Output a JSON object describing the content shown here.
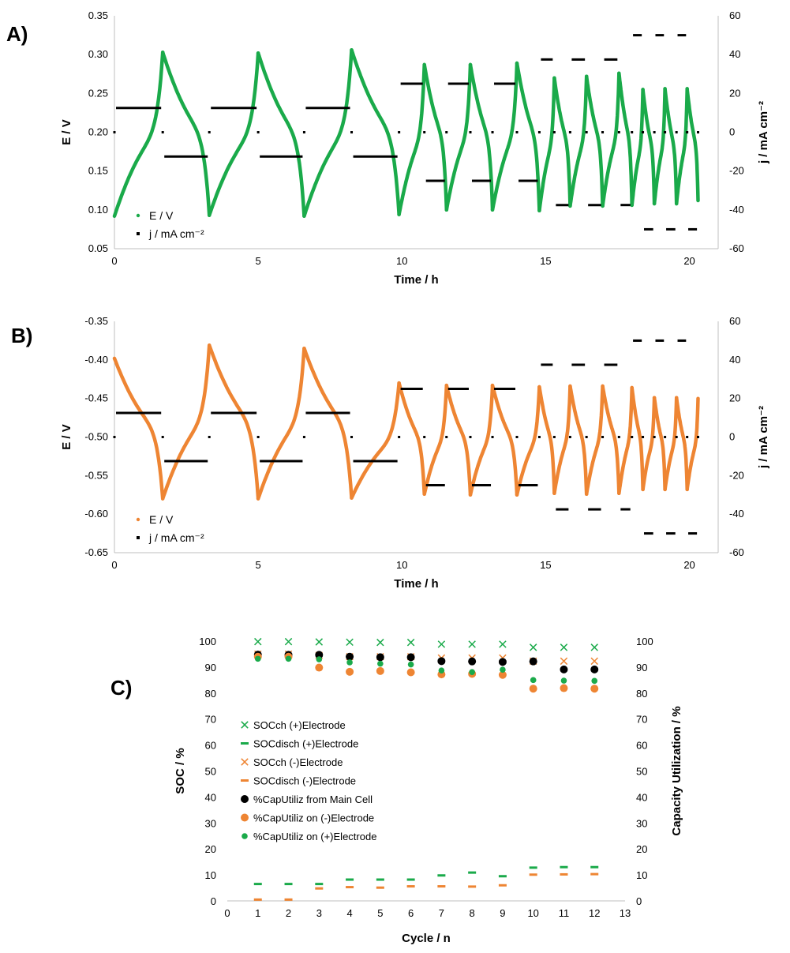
{
  "colors": {
    "green": "#1aaa4a",
    "orange": "#ee8533",
    "black": "#000000",
    "axis": "#bfbfbf"
  },
  "chart_data": [
    {
      "id": "A",
      "panel_label": "A)",
      "type": "line",
      "xlabel": "Time / h",
      "ylabel": "E / V",
      "y2label": "j / mA cm⁻²",
      "xlim": [
        0,
        21
      ],
      "ylim": [
        0.05,
        0.35
      ],
      "y2lim": [
        -60,
        60
      ],
      "xticks": [
        "0",
        "5",
        "10",
        "15",
        "20"
      ],
      "yticks": [
        "0.05",
        "0.10",
        "0.15",
        "0.20",
        "0.25",
        "0.30",
        "0.35"
      ],
      "y2ticks": [
        "-60",
        "-40",
        "-20",
        "0",
        "20",
        "40",
        "60"
      ],
      "legend": [
        "E / V",
        "j / mA cm⁻²"
      ],
      "legend_position": "bottom-left",
      "series": [
        {
          "name": "E / V",
          "color": "#1aaa4a",
          "segments": [
            {
              "t0": 0.0,
              "t1": 1.68,
              "v0": 0.092,
              "v1": 0.303
            },
            {
              "t0": 1.68,
              "t1": 3.3,
              "v0": 0.303,
              "v1": 0.093
            },
            {
              "t0": 3.3,
              "t1": 5.0,
              "v0": 0.093,
              "v1": 0.302
            },
            {
              "t0": 5.0,
              "t1": 6.6,
              "v0": 0.302,
              "v1": 0.092
            },
            {
              "t0": 6.6,
              "t1": 8.25,
              "v0": 0.092,
              "v1": 0.306
            },
            {
              "t0": 8.25,
              "t1": 9.9,
              "v0": 0.306,
              "v1": 0.094
            },
            {
              "t0": 9.9,
              "t1": 10.78,
              "v0": 0.094,
              "v1": 0.287
            },
            {
              "t0": 10.78,
              "t1": 11.55,
              "v0": 0.287,
              "v1": 0.1
            },
            {
              "t0": 11.55,
              "t1": 12.38,
              "v0": 0.1,
              "v1": 0.287
            },
            {
              "t0": 12.38,
              "t1": 13.15,
              "v0": 0.287,
              "v1": 0.1
            },
            {
              "t0": 13.15,
              "t1": 14.0,
              "v0": 0.1,
              "v1": 0.289
            },
            {
              "t0": 14.0,
              "t1": 14.78,
              "v0": 0.289,
              "v1": 0.099
            },
            {
              "t0": 14.78,
              "t1": 15.3,
              "v0": 0.099,
              "v1": 0.27
            },
            {
              "t0": 15.3,
              "t1": 15.85,
              "v0": 0.27,
              "v1": 0.105
            },
            {
              "t0": 15.85,
              "t1": 16.42,
              "v0": 0.105,
              "v1": 0.272
            },
            {
              "t0": 16.42,
              "t1": 16.98,
              "v0": 0.272,
              "v1": 0.105
            },
            {
              "t0": 16.98,
              "t1": 17.55,
              "v0": 0.105,
              "v1": 0.276
            },
            {
              "t0": 17.55,
              "t1": 18.0,
              "v0": 0.276,
              "v1": 0.106
            },
            {
              "t0": 18.0,
              "t1": 18.38,
              "v0": 0.106,
              "v1": 0.255
            },
            {
              "t0": 18.38,
              "t1": 18.78,
              "v0": 0.255,
              "v1": 0.108
            },
            {
              "t0": 18.78,
              "t1": 19.15,
              "v0": 0.108,
              "v1": 0.256
            },
            {
              "t0": 19.15,
              "t1": 19.55,
              "v0": 0.256,
              "v1": 0.108
            },
            {
              "t0": 19.55,
              "t1": 19.92,
              "v0": 0.108,
              "v1": 0.256
            },
            {
              "t0": 19.92,
              "t1": 20.3,
              "v0": 0.256,
              "v1": 0.112
            }
          ]
        },
        {
          "name": "j / mA cm⁻²",
          "color": "#000000",
          "axis": "right",
          "steps": [
            {
              "t0": 0.0,
              "t1": 1.68,
              "j": 12.5
            },
            {
              "t0": 1.68,
              "t1": 3.3,
              "j": -12.5
            },
            {
              "t0": 3.3,
              "t1": 5.0,
              "j": 12.5
            },
            {
              "t0": 5.0,
              "t1": 6.6,
              "j": -12.5
            },
            {
              "t0": 6.6,
              "t1": 8.25,
              "j": 12.5
            },
            {
              "t0": 8.25,
              "t1": 9.9,
              "j": -12.5
            },
            {
              "t0": 9.9,
              "t1": 10.78,
              "j": 25
            },
            {
              "t0": 10.78,
              "t1": 11.55,
              "j": -25
            },
            {
              "t0": 11.55,
              "t1": 12.38,
              "j": 25
            },
            {
              "t0": 12.38,
              "t1": 13.15,
              "j": -25
            },
            {
              "t0": 13.15,
              "t1": 14.0,
              "j": 25
            },
            {
              "t0": 14.0,
              "t1": 14.78,
              "j": -25
            },
            {
              "t0": 14.78,
              "t1": 15.3,
              "j": 37.5
            },
            {
              "t0": 15.3,
              "t1": 15.85,
              "j": -37.5
            },
            {
              "t0": 15.85,
              "t1": 16.42,
              "j": 37.5
            },
            {
              "t0": 16.42,
              "t1": 16.98,
              "j": -37.5
            },
            {
              "t0": 16.98,
              "t1": 17.55,
              "j": 37.5
            },
            {
              "t0": 17.55,
              "t1": 18.0,
              "j": -37.5
            },
            {
              "t0": 18.0,
              "t1": 18.38,
              "j": 50
            },
            {
              "t0": 18.38,
              "t1": 18.78,
              "j": -50
            },
            {
              "t0": 18.78,
              "t1": 19.15,
              "j": 50
            },
            {
              "t0": 19.15,
              "t1": 19.55,
              "j": -50
            },
            {
              "t0": 19.55,
              "t1": 19.92,
              "j": 50
            },
            {
              "t0": 19.92,
              "t1": 20.3,
              "j": -50
            }
          ],
          "zero_points": [
            0,
            1.68,
            3.3,
            5.0,
            6.6,
            8.25,
            9.9,
            10.78,
            11.55,
            12.38,
            13.15,
            14.0,
            14.78,
            15.3,
            15.85,
            16.42,
            16.98,
            17.55,
            18.0,
            18.38,
            18.78,
            19.15,
            19.55,
            19.92,
            20.3
          ]
        }
      ]
    },
    {
      "id": "B",
      "panel_label": "B)",
      "type": "line",
      "xlabel": "Time / h",
      "ylabel": "E / V",
      "y2label": "j / mA cm⁻²",
      "xlim": [
        0,
        21
      ],
      "ylim": [
        -0.65,
        -0.35
      ],
      "y2lim": [
        -60,
        60
      ],
      "xticks": [
        "0",
        "5",
        "10",
        "15",
        "20"
      ],
      "yticks": [
        "-0.65",
        "-0.60",
        "-0.55",
        "-0.50",
        "-0.45",
        "-0.40",
        "-0.35"
      ],
      "y2ticks": [
        "-60",
        "-40",
        "-20",
        "0",
        "20",
        "40",
        "60"
      ],
      "legend": [
        "E / V",
        "j / mA cm⁻²"
      ],
      "legend_position": "bottom-left",
      "series": [
        {
          "name": "E / V",
          "color": "#ee8533",
          "segments": [
            {
              "t0": 0.0,
              "t1": 1.68,
              "v0": -0.398,
              "v1": -0.58
            },
            {
              "t0": 1.68,
              "t1": 3.3,
              "v0": -0.58,
              "v1": -0.381
            },
            {
              "t0": 3.3,
              "t1": 5.0,
              "v0": -0.381,
              "v1": -0.58
            },
            {
              "t0": 5.0,
              "t1": 6.6,
              "v0": -0.58,
              "v1": -0.385
            },
            {
              "t0": 6.6,
              "t1": 8.25,
              "v0": -0.385,
              "v1": -0.579
            },
            {
              "t0": 8.25,
              "t1": 9.9,
              "v0": -0.579,
              "v1": -0.43
            },
            {
              "t0": 9.9,
              "t1": 10.78,
              "v0": -0.43,
              "v1": -0.574
            },
            {
              "t0": 10.78,
              "t1": 11.55,
              "v0": -0.574,
              "v1": -0.433
            },
            {
              "t0": 11.55,
              "t1": 12.38,
              "v0": -0.433,
              "v1": -0.575
            },
            {
              "t0": 12.38,
              "t1": 13.15,
              "v0": -0.575,
              "v1": -0.433
            },
            {
              "t0": 13.15,
              "t1": 14.0,
              "v0": -0.433,
              "v1": -0.575
            },
            {
              "t0": 14.0,
              "t1": 14.78,
              "v0": -0.575,
              "v1": -0.435
            },
            {
              "t0": 14.78,
              "t1": 15.3,
              "v0": -0.435,
              "v1": -0.573
            },
            {
              "t0": 15.3,
              "t1": 15.85,
              "v0": -0.573,
              "v1": -0.434
            },
            {
              "t0": 15.85,
              "t1": 16.42,
              "v0": -0.434,
              "v1": -0.574
            },
            {
              "t0": 16.42,
              "t1": 16.98,
              "v0": -0.574,
              "v1": -0.434
            },
            {
              "t0": 16.98,
              "t1": 17.55,
              "v0": -0.434,
              "v1": -0.573
            },
            {
              "t0": 17.55,
              "t1": 18.0,
              "v0": -0.573,
              "v1": -0.436
            },
            {
              "t0": 18.0,
              "t1": 18.38,
              "v0": -0.436,
              "v1": -0.568
            },
            {
              "t0": 18.38,
              "t1": 18.78,
              "v0": -0.568,
              "v1": -0.449
            },
            {
              "t0": 18.78,
              "t1": 19.15,
              "v0": -0.449,
              "v1": -0.568
            },
            {
              "t0": 19.15,
              "t1": 19.55,
              "v0": -0.568,
              "v1": -0.449
            },
            {
              "t0": 19.55,
              "t1": 19.92,
              "v0": -0.449,
              "v1": -0.568
            },
            {
              "t0": 19.92,
              "t1": 20.3,
              "v0": -0.568,
              "v1": -0.45
            }
          ]
        },
        {
          "name": "j / mA cm⁻²",
          "color": "#000000",
          "axis": "right",
          "steps": [
            {
              "t0": 0.0,
              "t1": 1.68,
              "j": 12.5
            },
            {
              "t0": 1.68,
              "t1": 3.3,
              "j": -12.5
            },
            {
              "t0": 3.3,
              "t1": 5.0,
              "j": 12.5
            },
            {
              "t0": 5.0,
              "t1": 6.6,
              "j": -12.5
            },
            {
              "t0": 6.6,
              "t1": 8.25,
              "j": 12.5
            },
            {
              "t0": 8.25,
              "t1": 9.9,
              "j": -12.5
            },
            {
              "t0": 9.9,
              "t1": 10.78,
              "j": 25
            },
            {
              "t0": 10.78,
              "t1": 11.55,
              "j": -25
            },
            {
              "t0": 11.55,
              "t1": 12.38,
              "j": 25
            },
            {
              "t0": 12.38,
              "t1": 13.15,
              "j": -25
            },
            {
              "t0": 13.15,
              "t1": 14.0,
              "j": 25
            },
            {
              "t0": 14.0,
              "t1": 14.78,
              "j": -25
            },
            {
              "t0": 14.78,
              "t1": 15.3,
              "j": 37.5
            },
            {
              "t0": 15.3,
              "t1": 15.85,
              "j": -37.5
            },
            {
              "t0": 15.85,
              "t1": 16.42,
              "j": 37.5
            },
            {
              "t0": 16.42,
              "t1": 16.98,
              "j": -37.5
            },
            {
              "t0": 16.98,
              "t1": 17.55,
              "j": 37.5
            },
            {
              "t0": 17.55,
              "t1": 18.0,
              "j": -37.5
            },
            {
              "t0": 18.0,
              "t1": 18.38,
              "j": 50
            },
            {
              "t0": 18.38,
              "t1": 18.78,
              "j": -50
            },
            {
              "t0": 18.78,
              "t1": 19.15,
              "j": 50
            },
            {
              "t0": 19.15,
              "t1": 19.55,
              "j": -50
            },
            {
              "t0": 19.55,
              "t1": 19.92,
              "j": 50
            },
            {
              "t0": 19.92,
              "t1": 20.3,
              "j": -50
            }
          ],
          "zero_points": [
            0,
            1.68,
            3.3,
            5.0,
            6.6,
            8.25,
            9.9,
            10.78,
            11.55,
            12.38,
            13.15,
            14.0,
            14.78,
            15.3,
            15.85,
            16.42,
            16.98,
            17.55,
            18.0,
            18.38,
            18.78,
            19.15,
            19.55,
            19.92,
            20.3
          ]
        }
      ]
    },
    {
      "id": "C",
      "panel_label": "C)",
      "type": "scatter",
      "xlabel": "Cycle / n",
      "ylabel": "SOC / %",
      "y2label": "Capacity Utilization / %",
      "xlim": [
        0,
        13
      ],
      "ylim": [
        0,
        100
      ],
      "y2lim": [
        0,
        100
      ],
      "xticks": [
        "0",
        "1",
        "2",
        "3",
        "4",
        "5",
        "6",
        "7",
        "8",
        "9",
        "10",
        "11",
        "12",
        "13"
      ],
      "yticks": [
        "0",
        "10",
        "20",
        "30",
        "40",
        "50",
        "60",
        "70",
        "80",
        "90",
        "100"
      ],
      "y2ticks": [
        "0",
        "10",
        "20",
        "30",
        "40",
        "50",
        "60",
        "70",
        "80",
        "90",
        "100"
      ],
      "legend_position": "left-middle",
      "x": [
        1,
        2,
        3,
        4,
        5,
        6,
        7,
        8,
        9,
        10,
        11,
        12
      ],
      "series": [
        {
          "name": "SOCch (+)Electrode",
          "marker": "x",
          "color": "#1aaa4a",
          "values": [
            99.8,
            99.8,
            99.7,
            99.6,
            99.5,
            99.5,
            98.8,
            98.8,
            98.8,
            97.6,
            97.6,
            97.6
          ]
        },
        {
          "name": "SOCdisch (+)Electrode",
          "marker": "dash",
          "color": "#1aaa4a",
          "values": [
            6.5,
            6.5,
            6.5,
            8.2,
            8.2,
            8.2,
            9.8,
            10.9,
            9.5,
            12.8,
            13.0,
            13.0
          ]
        },
        {
          "name": "SOCch (-)Electrode",
          "marker": "x",
          "color": "#ee8533",
          "values": [
            95.0,
            95.0,
            94.5,
            94.0,
            94.0,
            94.0,
            93.5,
            93.5,
            93.5,
            92.3,
            92.3,
            92.3
          ]
        },
        {
          "name": "SOCdisch (-)Electrode",
          "marker": "dash",
          "color": "#ee8533",
          "values": [
            0.5,
            0.5,
            4.8,
            5.3,
            5.1,
            5.6,
            5.6,
            5.5,
            6.0,
            10.1,
            10.2,
            10.3
          ]
        },
        {
          "name": "%CapUtiliz from Main Cell",
          "marker": "circle-lg",
          "color": "#000000",
          "values": [
            94.8,
            94.7,
            94.7,
            94.0,
            93.8,
            93.8,
            92.3,
            92.2,
            92.0,
            92.2,
            89.1,
            89.1
          ]
        },
        {
          "name": "%CapUtiliz on (-)Electrode",
          "marker": "circle-lg",
          "color": "#ee8533",
          "values": [
            94.0,
            94.0,
            89.8,
            88.2,
            88.5,
            88.0,
            87.2,
            87.4,
            87.0,
            81.7,
            81.9,
            81.7
          ]
        },
        {
          "name": "%CapUtiliz on (+)Electrode",
          "marker": "circle-sm",
          "color": "#1aaa4a",
          "values": [
            93.2,
            93.2,
            93.0,
            91.8,
            91.3,
            91.0,
            88.7,
            88.1,
            89.0,
            85.0,
            84.8,
            84.7
          ]
        }
      ]
    }
  ]
}
